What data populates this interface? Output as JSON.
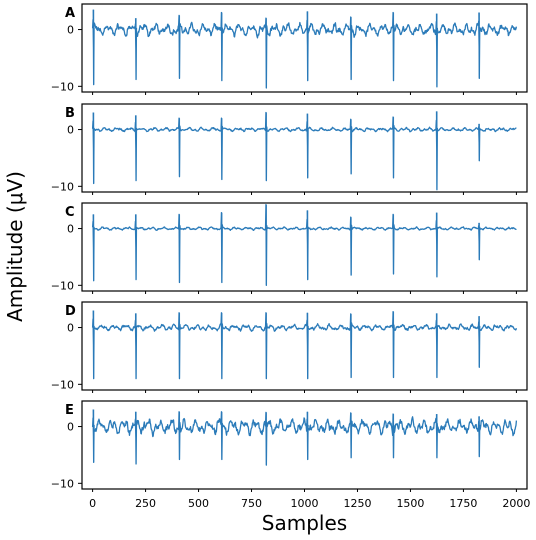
{
  "chart_data": {
    "type": "line",
    "xlabel": "Samples",
    "ylabel": "Amplitude (μV)",
    "xlim": [
      -50,
      2050
    ],
    "ylim": [
      -11,
      4.5
    ],
    "x_ticks": [
      0,
      250,
      500,
      750,
      1000,
      1250,
      1500,
      1750,
      2000
    ],
    "y_ticks": [
      0,
      -10
    ],
    "line_color": "#2b7bb9",
    "panels": [
      {
        "label": "A",
        "noise": 1.6,
        "spikes": [
          {
            "x": 5,
            "peak": 3.5,
            "trough": -9.7
          },
          {
            "x": 205,
            "peak": 2.0,
            "trough": -8.8
          },
          {
            "x": 410,
            "peak": 2.5,
            "trough": -8.6
          },
          {
            "x": 610,
            "peak": 3.0,
            "trough": -9.0
          },
          {
            "x": 820,
            "peak": 2.0,
            "trough": -10.3
          },
          {
            "x": 1015,
            "peak": 3.2,
            "trough": -9.0
          },
          {
            "x": 1220,
            "peak": 2.2,
            "trough": -8.8
          },
          {
            "x": 1420,
            "peak": 3.0,
            "trough": -9.0
          },
          {
            "x": 1625,
            "peak": 2.8,
            "trough": -10.1
          },
          {
            "x": 1825,
            "peak": 3.0,
            "trough": -8.6
          }
        ]
      },
      {
        "label": "B",
        "noise": 0.5,
        "spikes": [
          {
            "x": 5,
            "peak": 3.0,
            "trough": -9.5
          },
          {
            "x": 205,
            "peak": 2.5,
            "trough": -9.0
          },
          {
            "x": 410,
            "peak": 2.0,
            "trough": -8.3
          },
          {
            "x": 610,
            "peak": 2.0,
            "trough": -8.8
          },
          {
            "x": 820,
            "peak": 3.0,
            "trough": -9.0
          },
          {
            "x": 1015,
            "peak": 2.8,
            "trough": -8.5
          },
          {
            "x": 1220,
            "peak": 1.8,
            "trough": -7.8
          },
          {
            "x": 1420,
            "peak": 2.2,
            "trough": -8.5
          },
          {
            "x": 1625,
            "peak": 3.2,
            "trough": -10.6
          },
          {
            "x": 1825,
            "peak": 1.0,
            "trough": -5.5
          }
        ]
      },
      {
        "label": "C",
        "noise": 0.4,
        "spikes": [
          {
            "x": 5,
            "peak": 2.5,
            "trough": -9.2
          },
          {
            "x": 205,
            "peak": 2.5,
            "trough": -9.0
          },
          {
            "x": 410,
            "peak": 2.5,
            "trough": -9.5
          },
          {
            "x": 610,
            "peak": 2.8,
            "trough": -9.5
          },
          {
            "x": 820,
            "peak": 4.2,
            "trough": -10.0
          },
          {
            "x": 1015,
            "peak": 3.2,
            "trough": -9.0
          },
          {
            "x": 1220,
            "peak": 2.0,
            "trough": -8.2
          },
          {
            "x": 1420,
            "peak": 2.5,
            "trough": -8.0
          },
          {
            "x": 1625,
            "peak": 2.8,
            "trough": -8.5
          },
          {
            "x": 1825,
            "peak": 1.0,
            "trough": -5.5
          }
        ]
      },
      {
        "label": "D",
        "noise": 0.8,
        "spikes": [
          {
            "x": 5,
            "peak": 3.0,
            "trough": -9.0
          },
          {
            "x": 205,
            "peak": 2.5,
            "trough": -9.0
          },
          {
            "x": 410,
            "peak": 2.6,
            "trough": -9.0
          },
          {
            "x": 610,
            "peak": 2.6,
            "trough": -9.0
          },
          {
            "x": 820,
            "peak": 2.6,
            "trough": -9.0
          },
          {
            "x": 1015,
            "peak": 2.6,
            "trough": -9.0
          },
          {
            "x": 1220,
            "peak": 2.4,
            "trough": -8.8
          },
          {
            "x": 1420,
            "peak": 2.8,
            "trough": -8.8
          },
          {
            "x": 1625,
            "peak": 2.5,
            "trough": -8.8
          },
          {
            "x": 1825,
            "peak": 2.0,
            "trough": -7.0
          }
        ]
      },
      {
        "label": "E",
        "noise": 2.0,
        "spikes": [
          {
            "x": 5,
            "peak": 3.0,
            "trough": -6.3
          },
          {
            "x": 205,
            "peak": 2.6,
            "trough": -6.6
          },
          {
            "x": 410,
            "peak": 2.6,
            "trough": -5.8
          },
          {
            "x": 610,
            "peak": 2.6,
            "trough": -5.8
          },
          {
            "x": 820,
            "peak": 2.5,
            "trough": -6.8
          },
          {
            "x": 1015,
            "peak": 2.6,
            "trough": -5.8
          },
          {
            "x": 1220,
            "peak": 2.4,
            "trough": -5.5
          },
          {
            "x": 1420,
            "peak": 2.2,
            "trough": -5.5
          },
          {
            "x": 1625,
            "peak": 2.2,
            "trough": -5.5
          },
          {
            "x": 1825,
            "peak": 1.8,
            "trough": -5.3
          }
        ]
      }
    ]
  }
}
